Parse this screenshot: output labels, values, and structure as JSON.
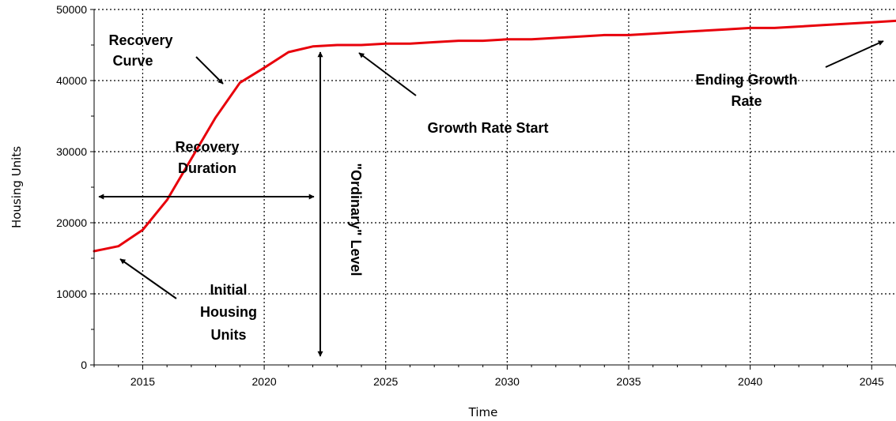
{
  "chart_data": {
    "type": "line",
    "xlabel": "Time",
    "ylabel": "Housing Units",
    "xlim": [
      2013,
      2046
    ],
    "ylim": [
      0,
      50000
    ],
    "x_ticks": [
      2015,
      2020,
      2025,
      2030,
      2035,
      2040,
      2045
    ],
    "y_ticks": [
      0,
      10000,
      20000,
      30000,
      40000,
      50000
    ],
    "x_tick_labels": [
      "2015",
      "2020",
      "2025",
      "2030",
      "2035",
      "2040",
      "2045"
    ],
    "y_tick_labels": [
      "0",
      "10000",
      "20000",
      "30000",
      "40000",
      "50000"
    ],
    "grid": true,
    "series": [
      {
        "color": "#e8000b",
        "x": [
          2013,
          2014,
          2015,
          2016,
          2017,
          2018,
          2019,
          2020,
          2021,
          2022,
          2023,
          2024,
          2025,
          2026,
          2027,
          2028,
          2029,
          2030,
          2031,
          2032,
          2033,
          2034,
          2035,
          2036,
          2037,
          2038,
          2039,
          2040,
          2041,
          2042,
          2043,
          2044,
          2045,
          2046
        ],
        "y": [
          16000,
          16700,
          19000,
          23200,
          29000,
          34800,
          39700,
          41800,
          44000,
          44800,
          45000,
          45000,
          45200,
          45200,
          45400,
          45600,
          45600,
          45800,
          45800,
          46000,
          46200,
          46400,
          46400,
          46600,
          46800,
          47000,
          47200,
          47400,
          47400,
          47600,
          47800,
          48000,
          48200,
          48400
        ]
      }
    ],
    "annotations": {
      "recovery_curve": [
        "Recovery",
        "Curve"
      ],
      "recovery_duration": [
        "Recovery",
        "Duration"
      ],
      "ordinary_level": "\"Ordinary\" Level",
      "growth_rate_start": "Growth Rate Start",
      "ending_growth_rate": [
        "Ending Growth",
        "Rate"
      ],
      "initial_housing_units": [
        "Initial",
        "Housing",
        "Units"
      ]
    }
  }
}
